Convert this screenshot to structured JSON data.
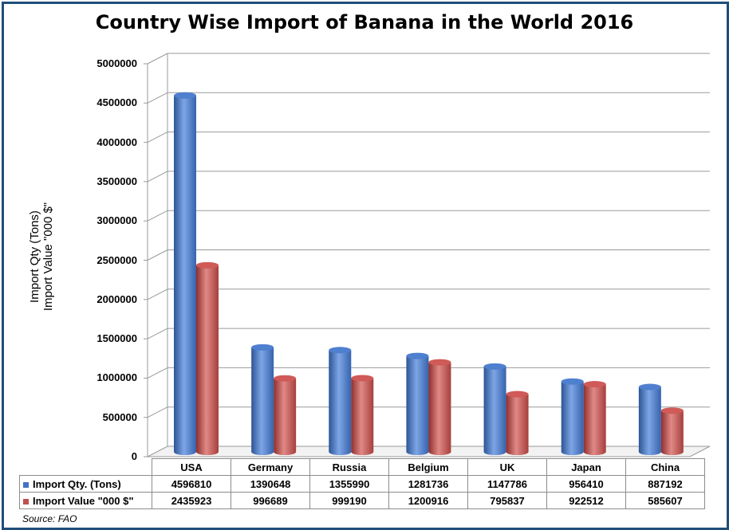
{
  "title": "Country Wise Import of Banana in the World 2016",
  "y_axis": {
    "line1": "Import Qty (Tons)",
    "line2": "Import Value \"000 $\""
  },
  "source": "Source: FAO",
  "colors": {
    "series1": "#4472c4",
    "series2": "#c0504d",
    "frame": "#1f4e79"
  },
  "chart_data": {
    "type": "bar",
    "title": "Country Wise Import of Banana in the World 2016",
    "categories": [
      "USA",
      "Germany",
      "Russia",
      "Belgium",
      "UK",
      "Japan",
      "China"
    ],
    "series": [
      {
        "name": "Import Qty. (Tons)",
        "values": [
          4596810,
          1390648,
          1355990,
          1281736,
          1147786,
          956410,
          887192
        ]
      },
      {
        "name": "Import Value \"000 $\"",
        "values": [
          2435923,
          996689,
          999190,
          1200916,
          795837,
          922512,
          585607
        ]
      }
    ],
    "ylabel": "Import Qty (Tons) Import Value \"000 $\"",
    "ylim": [
      0,
      5000000
    ],
    "yticks": [
      "0",
      "500000",
      "1000000",
      "1500000",
      "2000000",
      "2500000",
      "3000000",
      "3500000",
      "4000000",
      "4500000",
      "5000000"
    ],
    "grid": true,
    "legend": "data table below chart"
  }
}
